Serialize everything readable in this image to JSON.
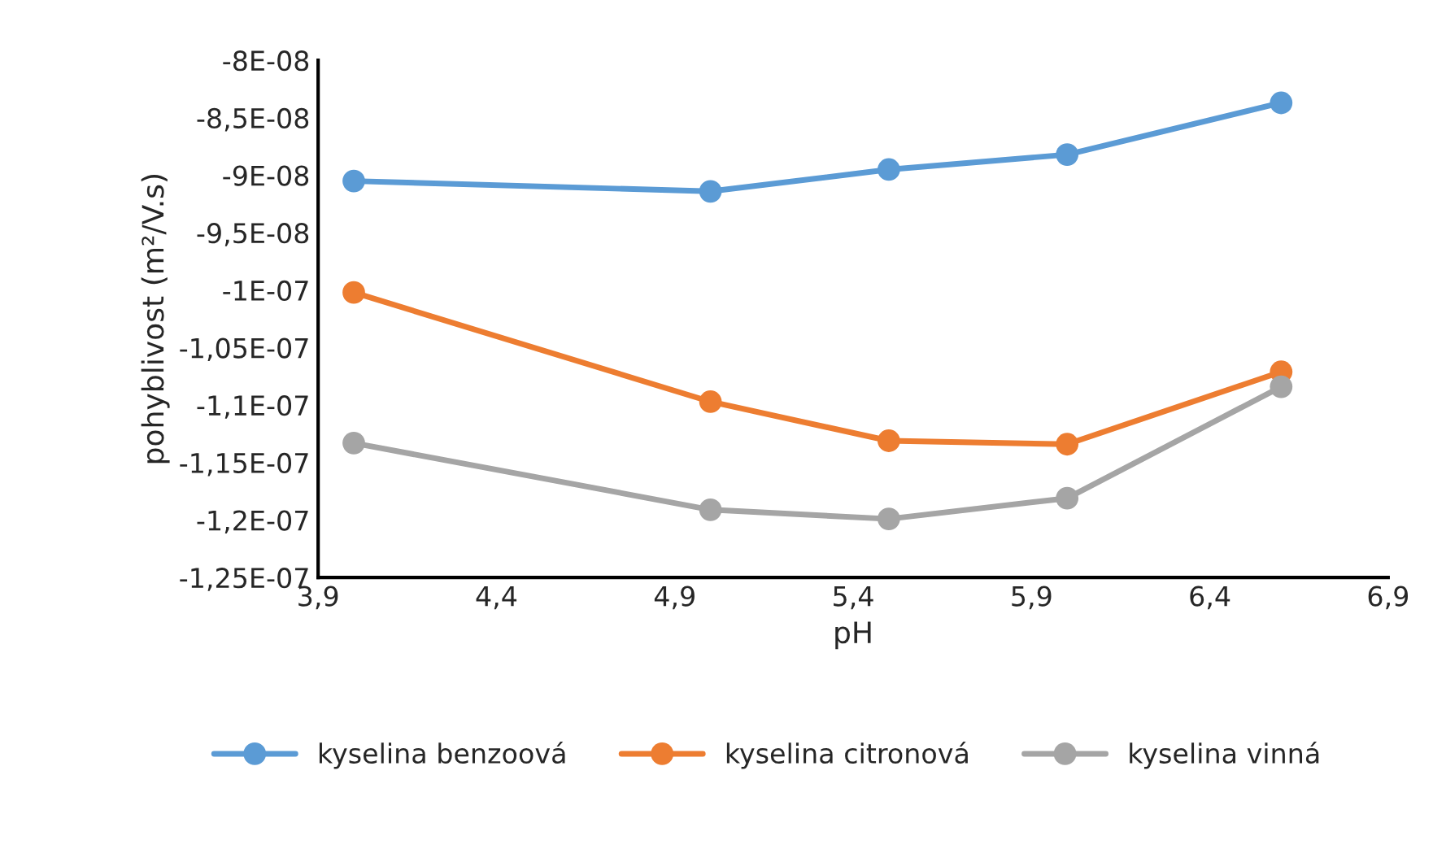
{
  "chart_data": {
    "type": "line",
    "xlabel": "pH",
    "ylabel": "pohyblivost (m²/V.s)",
    "x": [
      4.0,
      5.0,
      5.5,
      6.0,
      6.6
    ],
    "series": [
      {
        "name": "kyselina benzoová",
        "color": "#5b9bd5",
        "values": [
          -9.05e-08,
          -9.14e-08,
          -8.95e-08,
          -8.82e-08,
          -8.37e-08
        ]
      },
      {
        "name": "kyselina citronová",
        "color": "#ed7d31",
        "values": [
          -1.002e-07,
          -1.097e-07,
          -1.131e-07,
          -1.134e-07,
          -1.071e-07
        ]
      },
      {
        "name": "kyselina vinná",
        "color": "#a5a5a5",
        "values": [
          -1.133e-07,
          -1.191e-07,
          -1.199e-07,
          -1.181e-07,
          -1.084e-07
        ]
      }
    ],
    "xlim": [
      3.9,
      6.9
    ],
    "xticks": [
      {
        "value": 3.9,
        "label": "3,9"
      },
      {
        "value": 4.4,
        "label": "4,4"
      },
      {
        "value": 4.9,
        "label": "4,9"
      },
      {
        "value": 5.4,
        "label": "5,4"
      },
      {
        "value": 5.9,
        "label": "5,9"
      },
      {
        "value": 6.4,
        "label": "6,4"
      },
      {
        "value": 6.9,
        "label": "6,9"
      }
    ],
    "ylim": [
      -1.25e-07,
      -8e-08
    ],
    "yticks": [
      {
        "value": -1.25e-07,
        "label": "-1,25E-07"
      },
      {
        "value": -1.2e-07,
        "label": "-1,2E-07"
      },
      {
        "value": -1.15e-07,
        "label": "-1,15E-07"
      },
      {
        "value": -1.1e-07,
        "label": "-1,1E-07"
      },
      {
        "value": -1.05e-07,
        "label": "-1,05E-07"
      },
      {
        "value": -1e-07,
        "label": "-1E-07"
      },
      {
        "value": -9.5e-08,
        "label": "-9,5E-08"
      },
      {
        "value": -9e-08,
        "label": "-9E-08"
      },
      {
        "value": -8.5e-08,
        "label": "-8,5E-08"
      },
      {
        "value": -8e-08,
        "label": "-8E-08"
      }
    ],
    "grid": false,
    "legend": "bottom",
    "marker": "circle",
    "line_style": "solid"
  }
}
